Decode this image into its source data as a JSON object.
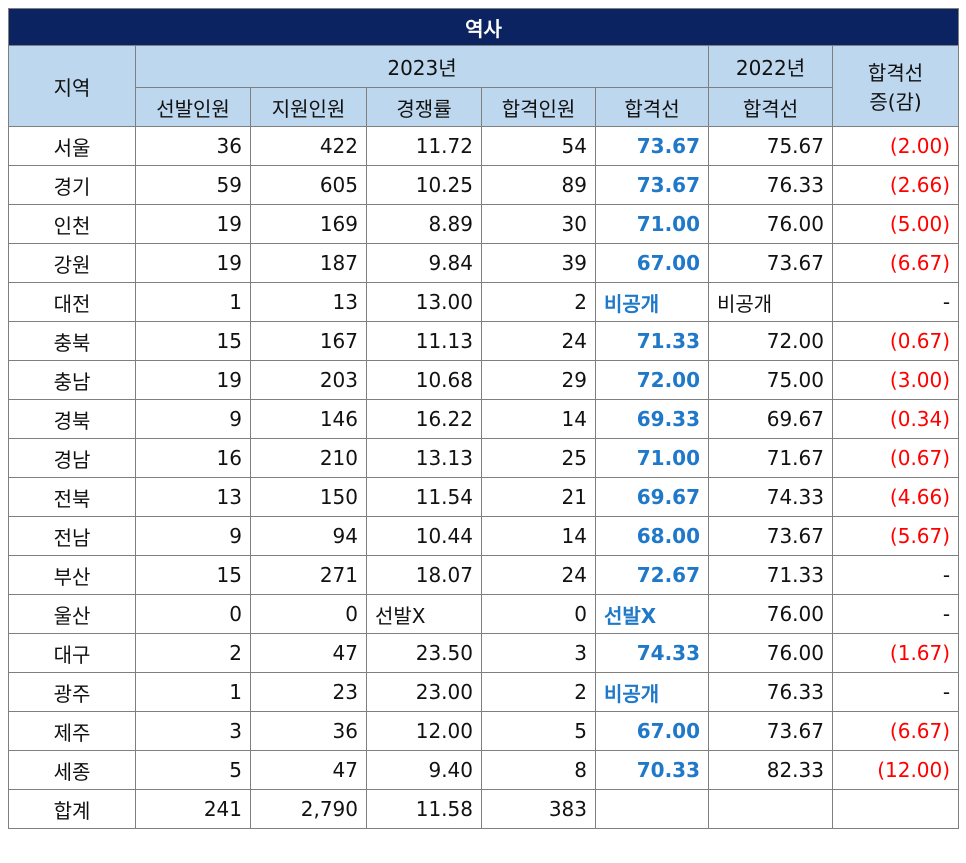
{
  "title": "역사",
  "header": {
    "region": "지역",
    "group_2023": "2023년",
    "group_2022": "2022년",
    "diff": [
      "합격선",
      "증(감)"
    ],
    "sub_2023": [
      "선발인원",
      "지원인원",
      "경쟁률",
      "합격인원",
      "합격선"
    ],
    "sub_2022": "합격선"
  },
  "rows": [
    [
      "서울",
      "36",
      "422",
      "11.72",
      "54",
      "73.67",
      "75.67",
      "(2.00)"
    ],
    [
      "경기",
      "59",
      "605",
      "10.25",
      "89",
      "73.67",
      "76.33",
      "(2.66)"
    ],
    [
      "인천",
      "19",
      "169",
      "8.89",
      "30",
      "71.00",
      "76.00",
      "(5.00)"
    ],
    [
      "강원",
      "19",
      "187",
      "9.84",
      "39",
      "67.00",
      "73.67",
      "(6.67)"
    ],
    [
      "대전",
      "1",
      "13",
      "13.00",
      "2",
      "비공개",
      "비공개",
      "-"
    ],
    [
      "충북",
      "15",
      "167",
      "11.13",
      "24",
      "71.33",
      "72.00",
      "(0.67)"
    ],
    [
      "충남",
      "19",
      "203",
      "10.68",
      "29",
      "72.00",
      "75.00",
      "(3.00)"
    ],
    [
      "경북",
      "9",
      "146",
      "16.22",
      "14",
      "69.33",
      "69.67",
      "(0.34)"
    ],
    [
      "경남",
      "16",
      "210",
      "13.13",
      "25",
      "71.00",
      "71.67",
      "(0.67)"
    ],
    [
      "전북",
      "13",
      "150",
      "11.54",
      "21",
      "69.67",
      "74.33",
      "(4.66)"
    ],
    [
      "전남",
      "9",
      "94",
      "10.44",
      "14",
      "68.00",
      "73.67",
      "(5.67)"
    ],
    [
      "부산",
      "15",
      "271",
      "18.07",
      "24",
      "72.67",
      "71.33",
      "-"
    ],
    [
      "울산",
      "0",
      "0",
      "선발X",
      "0",
      "선발X",
      "76.00",
      "-"
    ],
    [
      "대구",
      "2",
      "47",
      "23.50",
      "3",
      "74.33",
      "76.00",
      "(1.67)"
    ],
    [
      "광주",
      "1",
      "23",
      "23.00",
      "2",
      "비공개",
      "76.33",
      "-"
    ],
    [
      "제주",
      "3",
      "36",
      "12.00",
      "5",
      "67.00",
      "73.67",
      "(6.67)"
    ],
    [
      "세종",
      "5",
      "47",
      "9.40",
      "8",
      "70.33",
      "82.33",
      "(12.00)"
    ],
    [
      "합계",
      "241",
      "2,790",
      "11.58",
      "383"
    ]
  ]
}
